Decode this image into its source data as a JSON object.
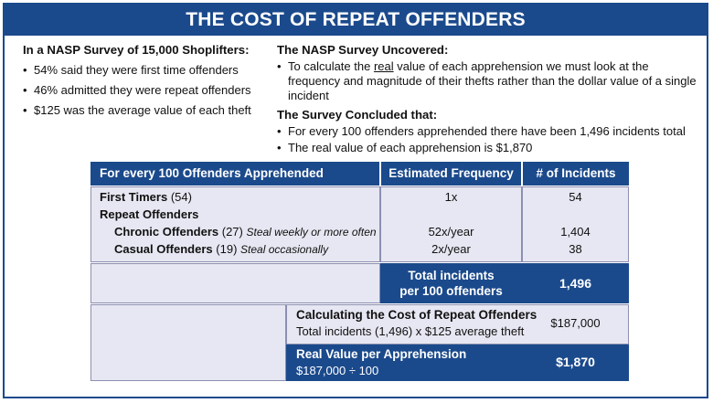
{
  "title": "THE COST OF REPEAT OFFENDERS",
  "left": {
    "heading": "In a NASP Survey of 15,000 Shoplifters:",
    "bullets": [
      "54% said they were first time offenders",
      "46% admitted they were repeat offenders",
      "$125 was the average value of each theft"
    ]
  },
  "right": {
    "heading1": "The NASP Survey Uncovered:",
    "uncovered_pre": "To calculate the ",
    "uncovered_emph": "real",
    "uncovered_post": " value of each apprehension we must look at the frequency and magnitude of their thefts rather than the dollar value of a single incident",
    "heading2": "The Survey Concluded that:",
    "concluded": [
      "For every 100 offenders apprehended there have been 1,496 incidents total",
      "The real value of each apprehension is $1,870"
    ]
  },
  "table": {
    "headers": [
      "For every 100 Offenders Apprehended",
      "Estimated Frequency",
      "# of Incidents"
    ],
    "first_timers": {
      "label": "First Timers",
      "count": "(54)",
      "freq": "1x",
      "incidents": "54"
    },
    "repeat_label": "Repeat Offenders",
    "chronic": {
      "label": "Chronic Offenders",
      "count": "(27)",
      "note": "Steal weekly or more often",
      "freq": "52x/year",
      "incidents": "1,404"
    },
    "casual": {
      "label": "Casual Offenders",
      "count": "(19)",
      "note": "Steal occasionally",
      "freq": "2x/year",
      "incidents": "38"
    },
    "total_label_1": "Total incidents",
    "total_label_2": "per 100 offenders",
    "total_value": "1,496",
    "calc_title": "Calculating the Cost of Repeat Offenders",
    "calc_desc": "Total incidents (1,496) x $125 average theft",
    "calc_value": "$187,000",
    "real_title": "Real Value per Apprehension",
    "real_desc": "$187,000 ÷ 100",
    "real_value": "$1,870"
  }
}
